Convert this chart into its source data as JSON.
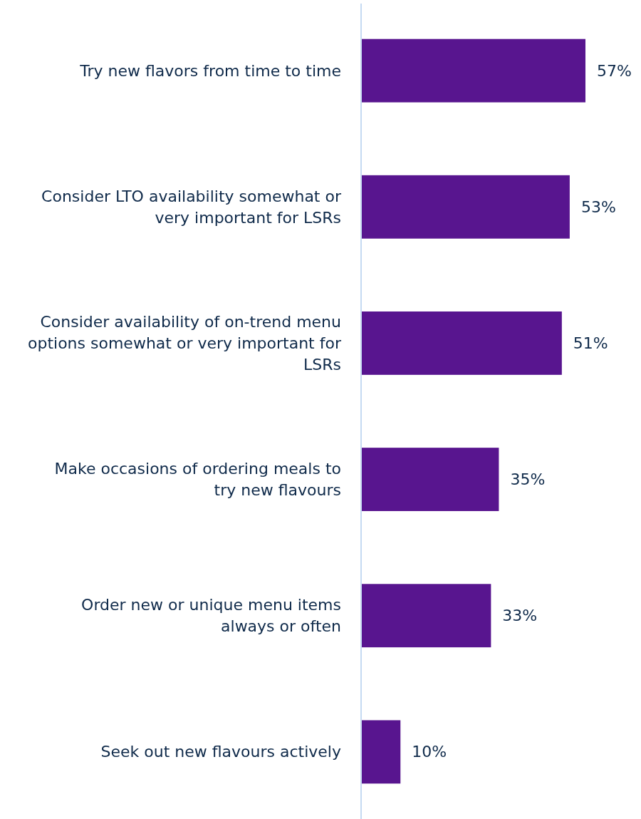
{
  "chart_data": {
    "type": "bar",
    "orientation": "horizontal",
    "categories": [
      "Try new flavors from time to time",
      "Consider LTO availability somewhat or very important for LSRs",
      "Consider availability of on-trend menu options somewhat or very important for LSRs",
      "Make occasions of ordering meals to try new flavours",
      "Order new or unique menu items always or often",
      "Seek out new flavours actively"
    ],
    "values": [
      57,
      53,
      51,
      35,
      33,
      10
    ],
    "value_labels": [
      "57%",
      "53%",
      "51%",
      "35%",
      "33%",
      "10%"
    ],
    "color": "#58158f",
    "tick_labels": "y"
  }
}
